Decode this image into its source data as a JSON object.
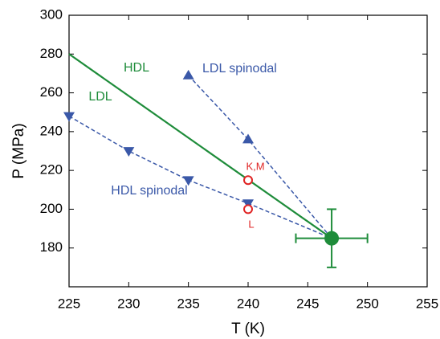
{
  "chart_data": {
    "type": "scatter",
    "xlabel": "T (K)",
    "ylabel": "P (MPa)",
    "xlim": [
      225,
      255
    ],
    "xticks": [
      225,
      230,
      235,
      240,
      245,
      250,
      255
    ],
    "ylim": [
      160,
      300
    ],
    "yticks": [
      180,
      200,
      220,
      240,
      260,
      280,
      300
    ],
    "coexistence": {
      "color": "#1e8c3a",
      "x": [
        225,
        247
      ],
      "values": [
        280,
        185
      ]
    },
    "spinodals": [
      {
        "color": "#3a58a8",
        "marker": "triangle-up",
        "x": [
          235,
          240
        ],
        "values": [
          269,
          236
        ]
      },
      {
        "color": "#3a58a8",
        "marker": "triangle-down",
        "x": [
          225,
          230,
          235,
          240
        ],
        "values": [
          248,
          230,
          215,
          203
        ]
      }
    ],
    "points": {
      "color": "#e02424",
      "x": [
        240,
        240
      ],
      "values": [
        215,
        200
      ]
    },
    "critical_point": {
      "color": "#1e8c3a",
      "x": 247,
      "y": 185,
      "xerr": 3,
      "yerr": 15
    },
    "annotations": [
      {
        "text": "HDL",
        "color": "#1e8c3a"
      },
      {
        "text": "LDL",
        "color": "#1e8c3a"
      },
      {
        "text": "LDL spinodal",
        "color": "#3a58a8"
      },
      {
        "text": "HDL spinodal",
        "color": "#3a58a8"
      },
      {
        "text": "K,M",
        "color": "#e02424"
      },
      {
        "text": "L",
        "color": "#e02424"
      }
    ]
  }
}
